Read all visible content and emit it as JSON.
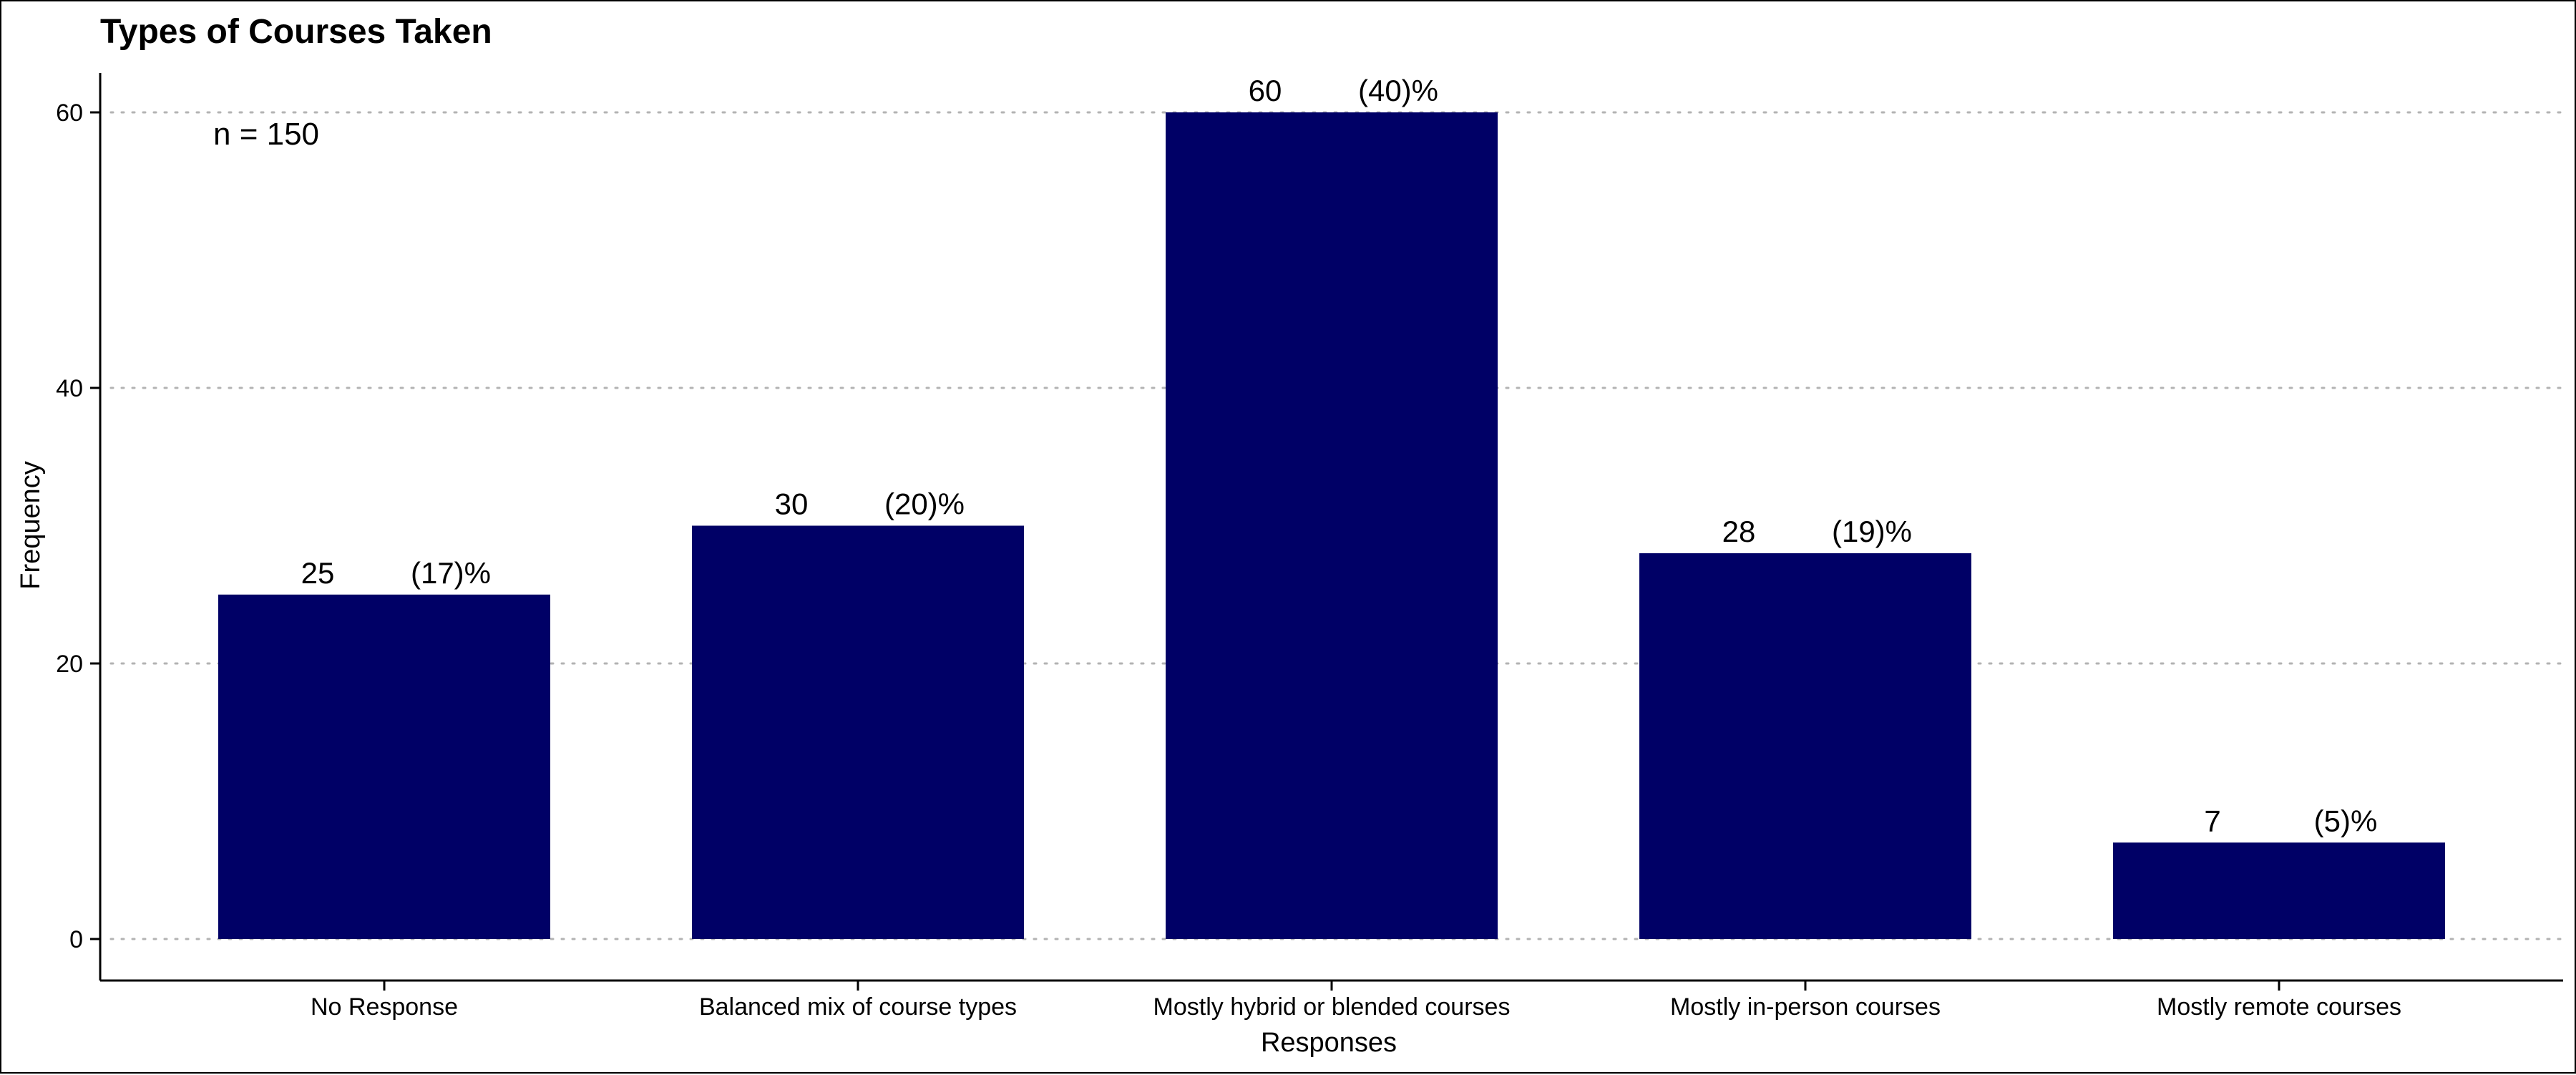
{
  "chart_data": {
    "type": "bar",
    "title": "Types of Courses Taken",
    "xlabel": "Responses",
    "ylabel": "Frequency",
    "annotation": "n = 150",
    "categories": [
      "No Response",
      "Balanced mix of course types",
      "Mostly hybrid or blended courses",
      "Mostly in-person courses",
      "Mostly remote courses"
    ],
    "values": [
      25,
      30,
      60,
      28,
      7
    ],
    "percent_labels": [
      "(17)%",
      "(20)%",
      "(40)%",
      "(19)%",
      "(5)%"
    ],
    "ylim": [
      0,
      63
    ],
    "yticks": [
      0,
      20,
      40,
      60
    ],
    "grid": "horizontal dotted",
    "bar_color": "#000066",
    "grid_color": "#b3b3b3"
  }
}
